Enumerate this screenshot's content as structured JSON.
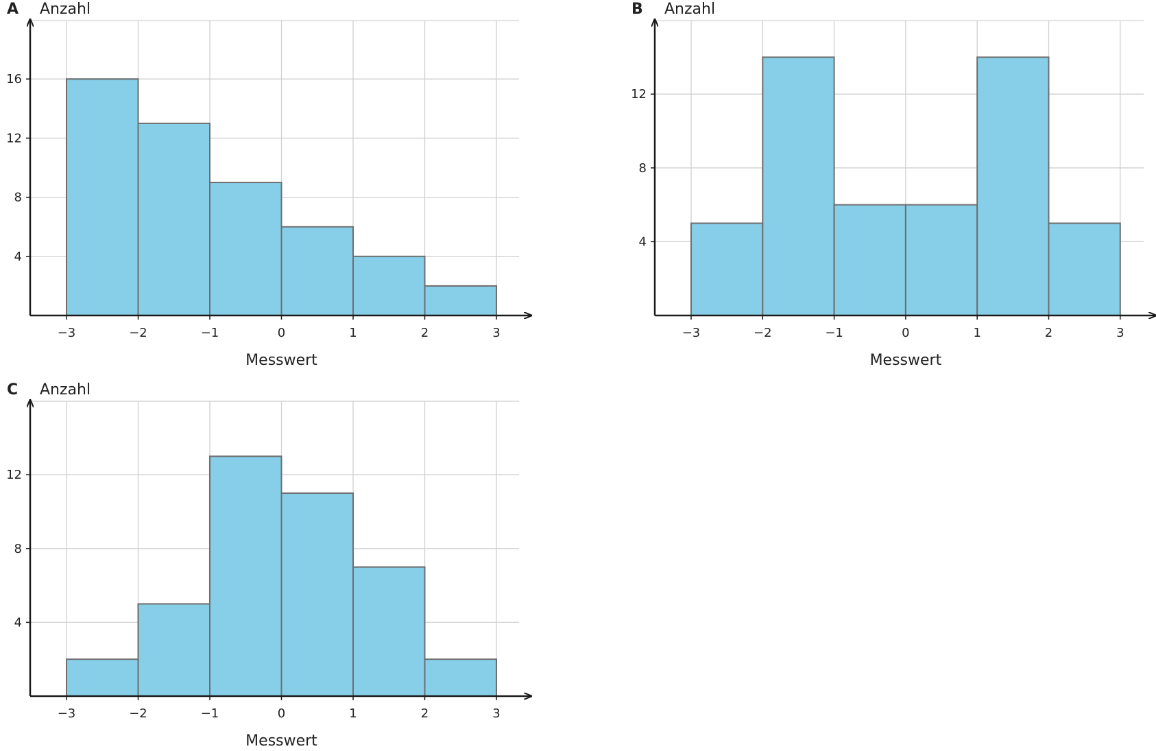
{
  "colors": {
    "bar_fill": "#87CEE8",
    "bar_stroke": "#6E6E6E",
    "grid": "#D0D0D0",
    "axis": "#1A1A1A"
  },
  "chart_data": [
    {
      "type": "bar",
      "panel": "A",
      "ylabel": "Anzahl",
      "xlabel": "Messwert",
      "bin_edges": [
        -3,
        -2,
        -1,
        0,
        1,
        2,
        3
      ],
      "values": [
        16,
        13,
        9,
        6,
        4,
        2
      ],
      "xticks": [
        -3,
        -2,
        -1,
        0,
        1,
        2,
        3
      ],
      "xtick_labels": [
        "−3",
        "−2",
        "−1",
        "0",
        "1",
        "2",
        "3"
      ],
      "yticks": [
        4,
        8,
        12,
        16
      ],
      "xlim": [
        -3.5,
        3.5
      ],
      "ylim": [
        0,
        20
      ],
      "grid": true
    },
    {
      "type": "bar",
      "panel": "B",
      "ylabel": "Anzahl",
      "xlabel": "Messwert",
      "bin_edges": [
        -3,
        -2,
        -1,
        0,
        1,
        2,
        3
      ],
      "values": [
        5,
        14,
        6,
        6,
        14,
        5
      ],
      "xticks": [
        -3,
        -2,
        -1,
        0,
        1,
        2,
        3
      ],
      "xtick_labels": [
        "−3",
        "−2",
        "−1",
        "0",
        "1",
        "2",
        "3"
      ],
      "yticks": [
        4,
        8,
        12
      ],
      "xlim": [
        -3.5,
        3.5
      ],
      "ylim": [
        0,
        16
      ],
      "grid": true
    },
    {
      "type": "bar",
      "panel": "C",
      "ylabel": "Anzahl",
      "xlabel": "Messwert",
      "bin_edges": [
        -3,
        -2,
        -1,
        0,
        1,
        2,
        3
      ],
      "values": [
        2,
        5,
        13,
        11,
        7,
        2
      ],
      "xticks": [
        -3,
        -2,
        -1,
        0,
        1,
        2,
        3
      ],
      "xtick_labels": [
        "−3",
        "−2",
        "−1",
        "0",
        "1",
        "2",
        "3"
      ],
      "yticks": [
        4,
        8,
        12
      ],
      "xlim": [
        -3.5,
        3.5
      ],
      "ylim": [
        0,
        16
      ],
      "grid": true
    }
  ]
}
